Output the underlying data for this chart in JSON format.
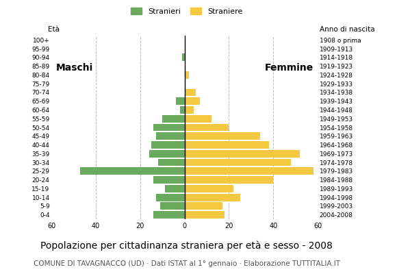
{
  "age_groups": [
    "0-4",
    "5-9",
    "10-14",
    "15-19",
    "20-24",
    "25-29",
    "30-34",
    "35-39",
    "40-44",
    "45-49",
    "50-54",
    "55-59",
    "60-64",
    "65-69",
    "70-74",
    "75-79",
    "80-84",
    "85-89",
    "90-94",
    "95-99",
    "100+"
  ],
  "birth_years": [
    "2004-2008",
    "1999-2003",
    "1994-1998",
    "1989-1993",
    "1984-1988",
    "1979-1983",
    "1974-1978",
    "1969-1973",
    "1964-1968",
    "1959-1963",
    "1954-1958",
    "1949-1953",
    "1944-1948",
    "1939-1943",
    "1934-1938",
    "1929-1933",
    "1924-1928",
    "1919-1923",
    "1914-1918",
    "1909-1913",
    "1908 o prima"
  ],
  "males": [
    14,
    11,
    13,
    9,
    14,
    47,
    12,
    16,
    15,
    13,
    14,
    10,
    2,
    4,
    0,
    0,
    0,
    0,
    1,
    0,
    0
  ],
  "females": [
    18,
    17,
    25,
    22,
    40,
    58,
    48,
    52,
    38,
    34,
    20,
    12,
    4,
    7,
    5,
    0,
    2,
    0,
    0,
    0,
    0
  ],
  "male_color": "#6aaa5e",
  "female_color": "#f5c842",
  "background_color": "#ffffff",
  "grid_color": "#bbbbbb",
  "title": "Popolazione per cittadinanza straniera per età e sesso - 2008",
  "subtitle": "COMUNE DI TAVAGNACCO (UD) · Dati ISTAT al 1° gennaio · Elaborazione TUTTITALIA.IT",
  "xlabel_left": "Maschi",
  "xlabel_right": "Femmine",
  "ylabel_left": "Età",
  "ylabel_right": "Anno di nascita",
  "legend_males": "Stranieri",
  "legend_females": "Straniere",
  "xlim": 60,
  "title_fontsize": 10,
  "subtitle_fontsize": 7.5,
  "bar_height": 0.85
}
